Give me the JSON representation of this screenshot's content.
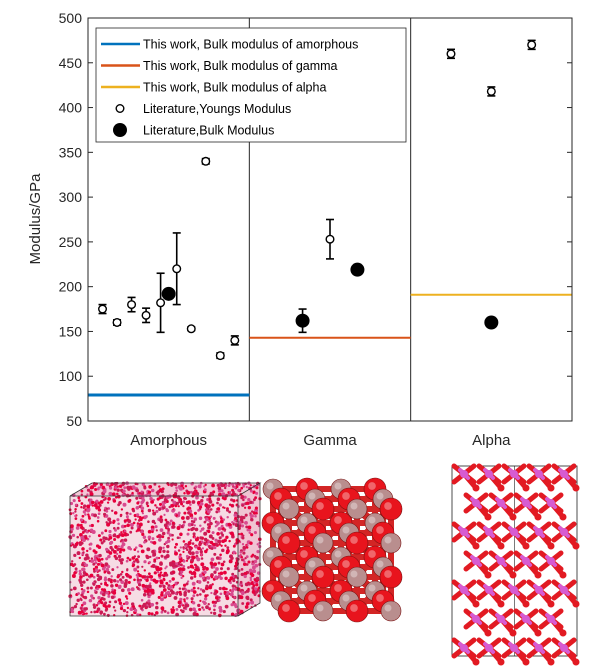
{
  "chart_data": {
    "type": "scatter",
    "ylabel": "Modulus/GPa",
    "xlabel": "",
    "ylim": [
      50,
      500
    ],
    "yticks": [
      50,
      100,
      150,
      200,
      250,
      300,
      350,
      400,
      450,
      500
    ],
    "grid": false,
    "legend_position": "top-left",
    "panels": [
      {
        "name": "Amorphous",
        "range": [
          0,
          1
        ]
      },
      {
        "name": "Gamma",
        "range": [
          1,
          2
        ]
      },
      {
        "name": "Alpha",
        "range": [
          2,
          3
        ]
      }
    ],
    "legend": [
      {
        "label": "This work, Bulk modulus of amorphous",
        "kind": "line",
        "color": "#0072BD"
      },
      {
        "label": "This work, Bulk modulus of gamma",
        "kind": "line",
        "color": "#D95319"
      },
      {
        "label": "This work, Bulk modulus of alpha",
        "kind": "line",
        "color": "#EDB120"
      },
      {
        "label": "Literature,Youngs Modulus",
        "kind": "open-circle",
        "color": "#000000"
      },
      {
        "label": "Literature,Bulk Modulus",
        "kind": "filled-circle",
        "color": "#000000"
      }
    ],
    "this_work_lines": [
      {
        "name": "This work, Bulk modulus of amorphous",
        "x_range": [
          0,
          1
        ],
        "value": 79,
        "color": "#0072BD"
      },
      {
        "name": "This work, Bulk modulus of gamma",
        "x_range": [
          1,
          2
        ],
        "value": 143,
        "color": "#D95319"
      },
      {
        "name": "This work, Bulk modulus of alpha",
        "x_range": [
          2,
          3
        ],
        "value": 191,
        "color": "#EDB120"
      }
    ],
    "series": [
      {
        "name": "Literature,Youngs Modulus",
        "marker": "open-circle",
        "points": [
          {
            "x": 0.09,
            "y": 175,
            "err": 5
          },
          {
            "x": 0.18,
            "y": 160,
            "err": 3
          },
          {
            "x": 0.27,
            "y": 180,
            "err": 8
          },
          {
            "x": 0.36,
            "y": 168,
            "err": 8
          },
          {
            "x": 0.45,
            "y": 182,
            "err": 33
          },
          {
            "x": 0.55,
            "y": 220,
            "err": 40
          },
          {
            "x": 0.64,
            "y": 153,
            "err": 2
          },
          {
            "x": 0.73,
            "y": 340,
            "err": 3
          },
          {
            "x": 0.82,
            "y": 123,
            "err": 3
          },
          {
            "x": 0.91,
            "y": 140,
            "err": 5
          },
          {
            "x": 1.5,
            "y": 253,
            "err": 22
          },
          {
            "x": 2.25,
            "y": 460,
            "err": 5
          },
          {
            "x": 2.5,
            "y": 418,
            "err": 5
          },
          {
            "x": 2.75,
            "y": 470,
            "err": 5
          }
        ]
      },
      {
        "name": "Literature,Bulk Modulus",
        "marker": "filled-circle",
        "points": [
          {
            "x": 0.5,
            "y": 192,
            "err": 0
          },
          {
            "x": 1.33,
            "y": 162,
            "err": 13
          },
          {
            "x": 1.67,
            "y": 219,
            "err": 0
          },
          {
            "x": 2.5,
            "y": 160,
            "err": 0
          }
        ]
      }
    ]
  },
  "structures": [
    {
      "name": "Amorphous",
      "atom_colors": [
        "#e8003c",
        "#cc1b55",
        "#d94a8f"
      ]
    },
    {
      "name": "Gamma",
      "atom_colors": [
        "#e8141d",
        "#b98e8e"
      ]
    },
    {
      "name": "Alpha",
      "atom_colors": [
        "#e21a22",
        "#d75bd2"
      ]
    }
  ]
}
